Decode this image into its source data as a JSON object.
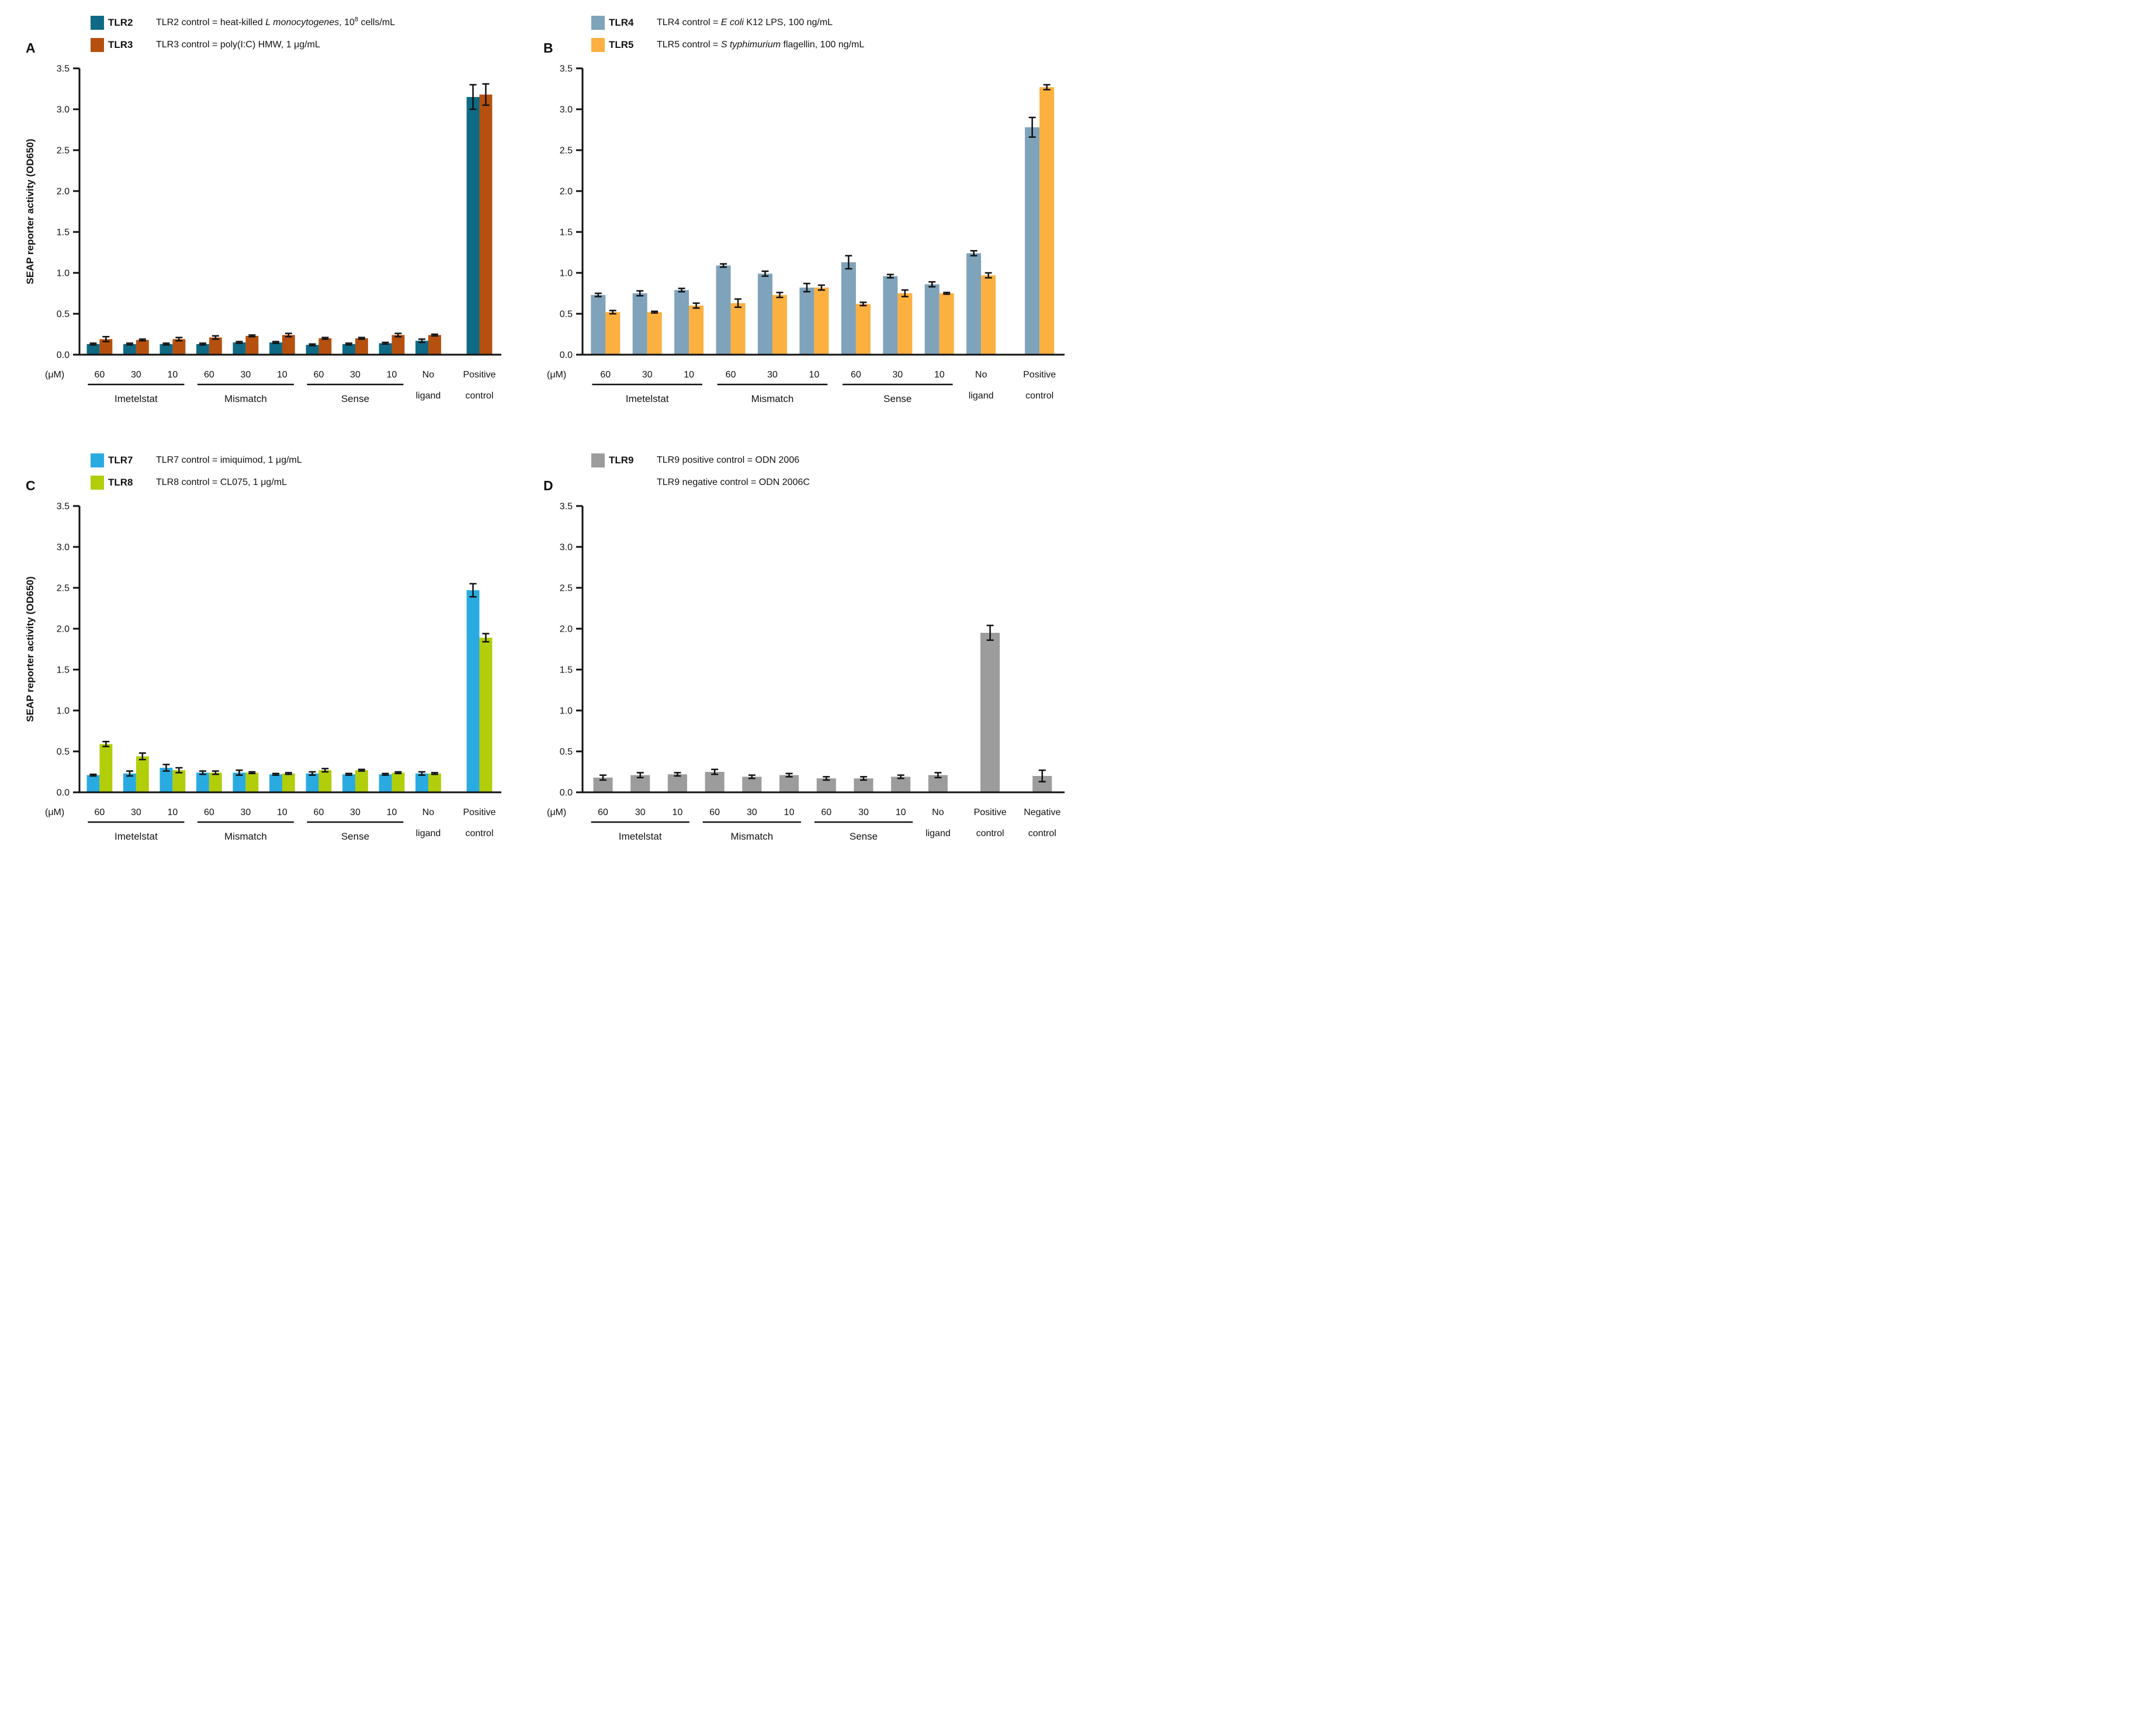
{
  "ink_color": "#111111",
  "y_axis": {
    "label": "SEAP reporter activity (OD650)",
    "min": 0,
    "max": 3.5,
    "tick_step": 0.5
  },
  "unit_label": "(μM)",
  "chart_data": [
    {
      "panel_label": "A",
      "type": "bar",
      "ylabel": "SEAP reporter activity (OD650)",
      "show_ylabel": true,
      "ylim": [
        0,
        3.5
      ],
      "ytick_step": 0.5,
      "unit_label": "(μM)",
      "categories": [
        [
          "60"
        ],
        [
          "30"
        ],
        [
          "10"
        ],
        [
          "60"
        ],
        [
          "30"
        ],
        [
          "10"
        ],
        [
          "60"
        ],
        [
          "30"
        ],
        [
          "10"
        ],
        [
          "No",
          "ligand"
        ],
        [
          "Positive",
          "control"
        ]
      ],
      "groups": [
        {
          "label": "Imetelstat",
          "from": 0,
          "to": 2
        },
        {
          "label": "Mismatch",
          "from": 3,
          "to": 5
        },
        {
          "label": "Sense",
          "from": 6,
          "to": 8
        }
      ],
      "legend": [
        {
          "swatch": "#0f6a85",
          "name": "TLR2",
          "desc": [
            {
              "t": "TLR2 control = heat-killed "
            },
            {
              "t": "L monocytogenes",
              "italic": true
            },
            {
              "t": ", 10"
            },
            {
              "t": "8",
              "sup": true
            },
            {
              "t": " cells/mL"
            }
          ]
        },
        {
          "swatch": "#b5500f",
          "name": "TLR3",
          "desc": [
            {
              "t": "TLR3 control = poly(I:C) HMW, 1 μg/mL"
            }
          ]
        }
      ],
      "series": [
        {
          "name": "TLR2",
          "color": "#0f6a85",
          "values": [
            0.13,
            0.13,
            0.13,
            0.13,
            0.15,
            0.15,
            0.12,
            0.13,
            0.14,
            0.17,
            3.15
          ],
          "errors": [
            0.01,
            0.01,
            0.01,
            0.01,
            0.01,
            0.01,
            0.01,
            0.01,
            0.01,
            0.02,
            0.15
          ]
        },
        {
          "name": "TLR3",
          "color": "#b5500f",
          "values": [
            0.19,
            0.18,
            0.19,
            0.21,
            0.23,
            0.24,
            0.2,
            0.2,
            0.24,
            0.24,
            3.18
          ],
          "errors": [
            0.03,
            0.01,
            0.02,
            0.02,
            0.01,
            0.02,
            0.01,
            0.01,
            0.02,
            0.01,
            0.13
          ]
        }
      ]
    },
    {
      "panel_label": "B",
      "type": "bar",
      "ylabel": "SEAP reporter activity (OD650)",
      "show_ylabel": false,
      "ylim": [
        0,
        3.5
      ],
      "ytick_step": 0.5,
      "unit_label": "(μM)",
      "categories": [
        [
          "60"
        ],
        [
          "30"
        ],
        [
          "10"
        ],
        [
          "60"
        ],
        [
          "30"
        ],
        [
          "10"
        ],
        [
          "60"
        ],
        [
          "30"
        ],
        [
          "10"
        ],
        [
          "No",
          "ligand"
        ],
        [
          "Positive",
          "control"
        ]
      ],
      "groups": [
        {
          "label": "Imetelstat",
          "from": 0,
          "to": 2
        },
        {
          "label": "Mismatch",
          "from": 3,
          "to": 5
        },
        {
          "label": "Sense",
          "from": 6,
          "to": 8
        }
      ],
      "legend": [
        {
          "swatch": "#7fa3ba",
          "name": "TLR4",
          "desc": [
            {
              "t": "TLR4 control = "
            },
            {
              "t": "E coli",
              "italic": true
            },
            {
              "t": " K12 LPS, 100 ng/mL"
            }
          ]
        },
        {
          "swatch": "#fbb040",
          "name": "TLR5",
          "desc": [
            {
              "t": "TLR5 control = "
            },
            {
              "t": "S typhimurium",
              "italic": true
            },
            {
              "t": " flagellin, 100 ng/mL"
            }
          ]
        }
      ],
      "series": [
        {
          "name": "TLR4",
          "color": "#7fa3ba",
          "values": [
            0.73,
            0.75,
            0.79,
            1.09,
            0.99,
            0.82,
            1.13,
            0.96,
            0.86,
            1.24,
            2.78
          ],
          "errors": [
            0.02,
            0.03,
            0.02,
            0.02,
            0.03,
            0.05,
            0.08,
            0.02,
            0.03,
            0.03,
            0.12
          ]
        },
        {
          "name": "TLR5",
          "color": "#fbb040",
          "values": [
            0.52,
            0.52,
            0.6,
            0.63,
            0.73,
            0.82,
            0.62,
            0.75,
            0.75,
            0.97,
            3.27
          ],
          "errors": [
            0.02,
            0.01,
            0.03,
            0.05,
            0.03,
            0.03,
            0.02,
            0.04,
            0.01,
            0.03,
            0.03
          ]
        }
      ]
    },
    {
      "panel_label": "C",
      "type": "bar",
      "ylabel": "SEAP reporter activity (OD650)",
      "show_ylabel": true,
      "ylim": [
        0,
        3.5
      ],
      "ytick_step": 0.5,
      "unit_label": "(μM)",
      "categories": [
        [
          "60"
        ],
        [
          "30"
        ],
        [
          "10"
        ],
        [
          "60"
        ],
        [
          "30"
        ],
        [
          "10"
        ],
        [
          "60"
        ],
        [
          "30"
        ],
        [
          "10"
        ],
        [
          "No",
          "ligand"
        ],
        [
          "Positive",
          "control"
        ]
      ],
      "groups": [
        {
          "label": "Imetelstat",
          "from": 0,
          "to": 2
        },
        {
          "label": "Mismatch",
          "from": 3,
          "to": 5
        },
        {
          "label": "Sense",
          "from": 6,
          "to": 8
        }
      ],
      "legend": [
        {
          "swatch": "#29abe2",
          "name": "TLR7",
          "desc": [
            {
              "t": "TLR7 control = imiquimod, 1 μg/mL"
            }
          ]
        },
        {
          "swatch": "#b2ce0a",
          "name": "TLR8",
          "desc": [
            {
              "t": "TLR8 control = CL075, 1 μg/mL"
            }
          ]
        }
      ],
      "series": [
        {
          "name": "TLR7",
          "color": "#29abe2",
          "values": [
            0.21,
            0.23,
            0.3,
            0.24,
            0.24,
            0.22,
            0.23,
            0.22,
            0.22,
            0.23,
            2.47
          ],
          "errors": [
            0.01,
            0.03,
            0.04,
            0.02,
            0.03,
            0.01,
            0.02,
            0.01,
            0.01,
            0.02,
            0.08
          ]
        },
        {
          "name": "TLR8",
          "color": "#b2ce0a",
          "values": [
            0.59,
            0.44,
            0.27,
            0.24,
            0.24,
            0.23,
            0.27,
            0.27,
            0.24,
            0.23,
            1.89
          ],
          "errors": [
            0.03,
            0.04,
            0.03,
            0.02,
            0.01,
            0.01,
            0.02,
            0.01,
            0.01,
            0.01,
            0.05
          ]
        }
      ]
    },
    {
      "panel_label": "D",
      "type": "bar",
      "ylabel": "SEAP reporter activity (OD650)",
      "show_ylabel": false,
      "ylim": [
        0,
        3.5
      ],
      "ytick_step": 0.5,
      "unit_label": "(μM)",
      "categories": [
        [
          "60"
        ],
        [
          "30"
        ],
        [
          "10"
        ],
        [
          "60"
        ],
        [
          "30"
        ],
        [
          "10"
        ],
        [
          "60"
        ],
        [
          "30"
        ],
        [
          "10"
        ],
        [
          "No",
          "ligand"
        ],
        [
          "Positive",
          "control"
        ],
        [
          "Negative",
          "control"
        ]
      ],
      "groups": [
        {
          "label": "Imetelstat",
          "from": 0,
          "to": 2
        },
        {
          "label": "Mismatch",
          "from": 3,
          "to": 5
        },
        {
          "label": "Sense",
          "from": 6,
          "to": 8
        }
      ],
      "legend": [
        {
          "swatch": "#9c9c9c",
          "name": "TLR9",
          "desc": [
            {
              "t": "TLR9 positive control = ODN 2006"
            }
          ]
        },
        {
          "swatch": null,
          "name": "",
          "desc": [
            {
              "t": "TLR9 negative control = ODN 2006C"
            }
          ]
        }
      ],
      "series": [
        {
          "name": "TLR9",
          "color": "#9c9c9c",
          "values": [
            0.18,
            0.21,
            0.22,
            0.25,
            0.19,
            0.21,
            0.17,
            0.17,
            0.19,
            0.21,
            1.95,
            0.2
          ],
          "errors": [
            0.03,
            0.03,
            0.02,
            0.03,
            0.02,
            0.02,
            0.02,
            0.02,
            0.02,
            0.03,
            0.09,
            0.07
          ]
        }
      ]
    }
  ]
}
